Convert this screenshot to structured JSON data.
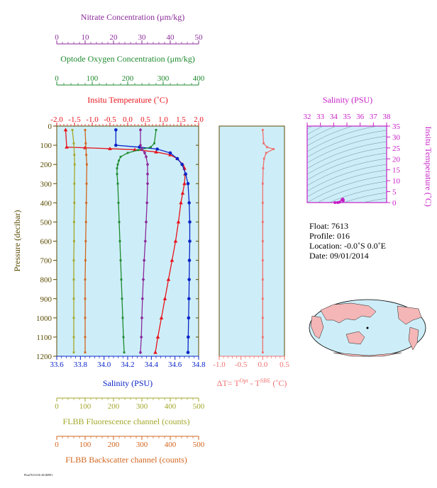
{
  "colors": {
    "nitrate": "#8B2A9A",
    "oxygen": "#1E8A2E",
    "temperature": "#E8131C",
    "salinity": "#0A24C8",
    "fluorescence": "#A3A72A",
    "backscatter": "#D2651E",
    "delta_t": "#F07070",
    "ts_axis": "#C71DC7",
    "panel_bg": "#CDEEF8",
    "axis_dark": "#5A4A00"
  },
  "info": {
    "float": "Float:  7613",
    "profile": "Profile:  016",
    "location": "Location:  -0.0˚S   0.0˚E",
    "date": "Date:  09/01/2014"
  },
  "footnote": "Float7613.016 20140901",
  "axes": {
    "nitrate": {
      "title": "Nitrate Concentration (μm/kg)",
      "min": 0,
      "max": 50,
      "ticks": [
        "0",
        "10",
        "20",
        "30",
        "40",
        "50"
      ]
    },
    "oxygen": {
      "title": "Optode Oxygen Concentration (μm/kg)",
      "min": 0,
      "max": 400,
      "ticks": [
        "0",
        "100",
        "200",
        "300",
        "400"
      ]
    },
    "temperature": {
      "title": "Insitu Temperature (˚C)",
      "min": -2.0,
      "max": 2.0,
      "ticks": [
        "-2.0",
        "-1.5",
        "-1.0",
        "-0.5",
        "0.0",
        "0.5",
        "1.0",
        "1.5",
        "2.0"
      ]
    },
    "pressure": {
      "title": "Pressure (decibar)",
      "min": 0,
      "max": 1200,
      "ticks": [
        "0",
        "100",
        "200",
        "300",
        "400",
        "500",
        "600",
        "700",
        "800",
        "900",
        "1000",
        "1100",
        "1200"
      ]
    },
    "salinity": {
      "title": "Salinity (PSU)",
      "min": 33.6,
      "max": 34.8,
      "ticks": [
        "33.6",
        "33.8",
        "34.0",
        "34.2",
        "34.4",
        "34.6",
        "34.8"
      ]
    },
    "fluorescence": {
      "title": "FLBB Fluorescence channel (counts)",
      "min": 0,
      "max": 500,
      "ticks": [
        "0",
        "100",
        "200",
        "300",
        "400",
        "500"
      ]
    },
    "backscatter": {
      "title": "FLBB Backscatter channel (counts)",
      "min": 0,
      "max": 500,
      "ticks": [
        "0",
        "100",
        "200",
        "300",
        "400",
        "500"
      ]
    },
    "delta_t": {
      "title_main": "ΔT= T",
      "title_sup1": "Opt",
      "title_mid": " - T",
      "title_sup2": "SBE",
      "title_end": " (˚C)",
      "min": -1.0,
      "max": 0.5,
      "ticks": [
        "-1.0",
        "-0.5",
        "0.0",
        "0.5"
      ]
    },
    "ts_salinity": {
      "title": "Salinity (PSU)",
      "min": 32,
      "max": 38,
      "ticks": [
        "32",
        "33",
        "34",
        "35",
        "36",
        "37",
        "38"
      ]
    },
    "ts_temperature": {
      "title": "Insitu Temperature (˚C)",
      "min": 0,
      "max": 35,
      "ticks": [
        "0",
        "5",
        "10",
        "15",
        "20",
        "25",
        "30",
        "35"
      ]
    }
  },
  "chart_data": {
    "type": "line",
    "y_axis": "pressure",
    "y_reversed": true,
    "series": [
      {
        "key": "temperature",
        "marker": "triangle",
        "axis": "temperature",
        "points": [
          [
            -1.75,
            20
          ],
          [
            -1.72,
            110
          ],
          [
            -1.2,
            113
          ],
          [
            -0.5,
            118
          ],
          [
            0.2,
            123
          ],
          [
            0.8,
            135
          ],
          [
            1.2,
            150
          ],
          [
            1.4,
            170
          ],
          [
            1.55,
            200
          ],
          [
            1.6,
            220
          ],
          [
            1.62,
            250
          ],
          [
            1.6,
            300
          ],
          [
            1.55,
            350
          ],
          [
            1.5,
            400
          ],
          [
            1.43,
            500
          ],
          [
            1.35,
            600
          ],
          [
            1.25,
            700
          ],
          [
            1.15,
            800
          ],
          [
            1.05,
            900
          ],
          [
            0.95,
            1000
          ],
          [
            0.85,
            1100
          ],
          [
            0.78,
            1180
          ]
        ]
      },
      {
        "key": "salinity",
        "marker": "circle",
        "axis": "salinity",
        "points": [
          [
            34.1,
            20
          ],
          [
            34.1,
            100
          ],
          [
            34.3,
            110
          ],
          [
            34.45,
            120
          ],
          [
            34.56,
            140
          ],
          [
            34.62,
            170
          ],
          [
            34.66,
            200
          ],
          [
            34.69,
            250
          ],
          [
            34.71,
            300
          ],
          [
            34.72,
            400
          ],
          [
            34.725,
            500
          ],
          [
            34.725,
            600
          ],
          [
            34.722,
            700
          ],
          [
            34.72,
            800
          ],
          [
            34.718,
            900
          ],
          [
            34.715,
            1000
          ],
          [
            34.712,
            1100
          ],
          [
            34.71,
            1180
          ]
        ]
      },
      {
        "key": "oxygen",
        "marker": "square",
        "axis": "oxygen",
        "points": [
          [
            280,
            20
          ],
          [
            275,
            90
          ],
          [
            265,
            110
          ],
          [
            230,
            125
          ],
          [
            200,
            140
          ],
          [
            180,
            160
          ],
          [
            175,
            180
          ],
          [
            172,
            200
          ],
          [
            170,
            220
          ],
          [
            170,
            250
          ],
          [
            172,
            300
          ],
          [
            174,
            400
          ],
          [
            176,
            500
          ],
          [
            178,
            600
          ],
          [
            180,
            700
          ],
          [
            182,
            800
          ],
          [
            184,
            900
          ],
          [
            186,
            1000
          ],
          [
            188,
            1100
          ],
          [
            190,
            1180
          ]
        ]
      },
      {
        "key": "nitrate",
        "marker": "diamond",
        "axis": "nitrate",
        "points": [
          [
            29.5,
            20
          ],
          [
            29.5,
            100
          ],
          [
            30,
            120
          ],
          [
            31,
            140
          ],
          [
            31.5,
            160
          ],
          [
            32,
            200
          ],
          [
            32,
            250
          ],
          [
            32,
            300
          ],
          [
            31.8,
            400
          ],
          [
            31.5,
            500
          ],
          [
            31.2,
            600
          ],
          [
            30.8,
            700
          ],
          [
            30.5,
            800
          ],
          [
            30.2,
            900
          ],
          [
            30,
            1000
          ],
          [
            29.8,
            1100
          ],
          [
            29.5,
            1180
          ]
        ]
      },
      {
        "key": "fluorescence",
        "marker": "square",
        "axis": "fluorescence",
        "points": [
          [
            55,
            20
          ],
          [
            60,
            90
          ],
          [
            62,
            150
          ],
          [
            63,
            200
          ],
          [
            62,
            300
          ],
          [
            62,
            400
          ],
          [
            61,
            500
          ],
          [
            61,
            600
          ],
          [
            60,
            700
          ],
          [
            60,
            800
          ],
          [
            60,
            900
          ],
          [
            60,
            1000
          ],
          [
            60,
            1100
          ],
          [
            60,
            1180
          ]
        ]
      },
      {
        "key": "backscatter",
        "marker": "square",
        "axis": "backscatter",
        "points": [
          [
            100,
            20
          ],
          [
            102,
            90
          ],
          [
            104,
            150
          ],
          [
            106,
            200
          ],
          [
            105,
            300
          ],
          [
            104,
            400
          ],
          [
            103,
            500
          ],
          [
            102,
            600
          ],
          [
            101,
            700
          ],
          [
            100,
            800
          ],
          [
            100,
            900
          ],
          [
            100,
            1000
          ],
          [
            100,
            1100
          ],
          [
            100,
            1180
          ]
        ]
      },
      {
        "key": "delta_t",
        "marker": "square",
        "axis": "delta_t",
        "points": [
          [
            0.0,
            20
          ],
          [
            0.02,
            90
          ],
          [
            0.1,
            110
          ],
          [
            0.25,
            120
          ],
          [
            0.08,
            140
          ],
          [
            0.03,
            170
          ],
          [
            0.01,
            220
          ],
          [
            0.0,
            300
          ],
          [
            0.0,
            400
          ],
          [
            0.0,
            500
          ],
          [
            0.0,
            600
          ],
          [
            0.0,
            700
          ],
          [
            0.0,
            800
          ],
          [
            0.0,
            900
          ],
          [
            0.0,
            1000
          ],
          [
            0.0,
            1100
          ],
          [
            0.0,
            1180
          ]
        ]
      }
    ],
    "ts_points": [
      [
        34.72,
        0.8
      ],
      [
        34.72,
        1.1
      ],
      [
        34.71,
        1.4
      ],
      [
        34.69,
        1.6
      ],
      [
        34.62,
        1.2
      ],
      [
        34.45,
        0.2
      ],
      [
        34.3,
        -0.5
      ],
      [
        34.1,
        -1.7
      ]
    ]
  }
}
